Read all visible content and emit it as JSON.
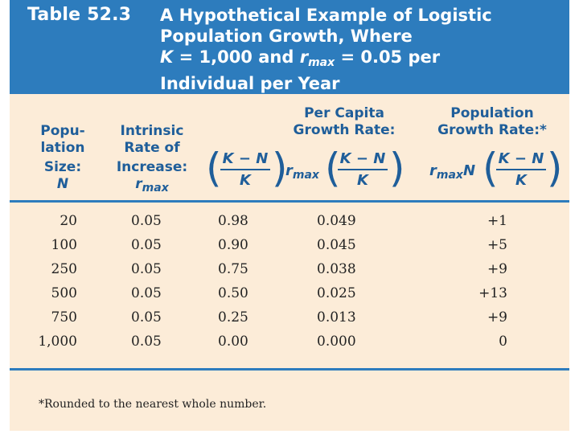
{
  "header": {
    "table_number": "Table 52.3",
    "title_line1": "A Hypothetical Example of Logistic",
    "title_line2": "Population Growth, Where",
    "title_line3_k": "K",
    "title_line3_mid": " = 1,000 and ",
    "title_line3_r": "r",
    "title_line3_rsub": "max",
    "title_line3_end": " = 0.05 per",
    "title_line4": "Individual per Year"
  },
  "columns": {
    "pop_size": [
      "Popu-",
      "lation",
      "Size:",
      "N"
    ],
    "intrinsic": [
      "Intrinsic",
      "Rate of",
      "Increase:",
      "r",
      "max"
    ],
    "ratio": {
      "num": "K − N",
      "den": "K"
    },
    "per_capita": [
      "Per Capita",
      "Growth Rate:"
    ],
    "per_capita_r": "r",
    "per_capita_rsub": "max",
    "population": [
      "Population",
      "Growth Rate:*"
    ],
    "population_r": "r",
    "population_rsub": "max",
    "population_n": "N"
  },
  "rows": [
    [
      "20",
      "0.05",
      "0.98",
      "0.049",
      "+1"
    ],
    [
      "100",
      "0.05",
      "0.90",
      "0.045",
      "+5"
    ],
    [
      "250",
      "0.05",
      "0.75",
      "0.038",
      "+9"
    ],
    [
      "500",
      "0.05",
      "0.50",
      "0.025",
      "+13"
    ],
    [
      "750",
      "0.05",
      "0.25",
      "0.013",
      "+9"
    ],
    [
      "1,000",
      "0.05",
      "0.00",
      "0.000",
      "0"
    ]
  ],
  "footnote": "*Rounded to the nearest whole number.",
  "colors": {
    "header_bg": "#2d7cbd",
    "body_bg": "#fcecd8",
    "heading_text": "#1f5e9a"
  }
}
